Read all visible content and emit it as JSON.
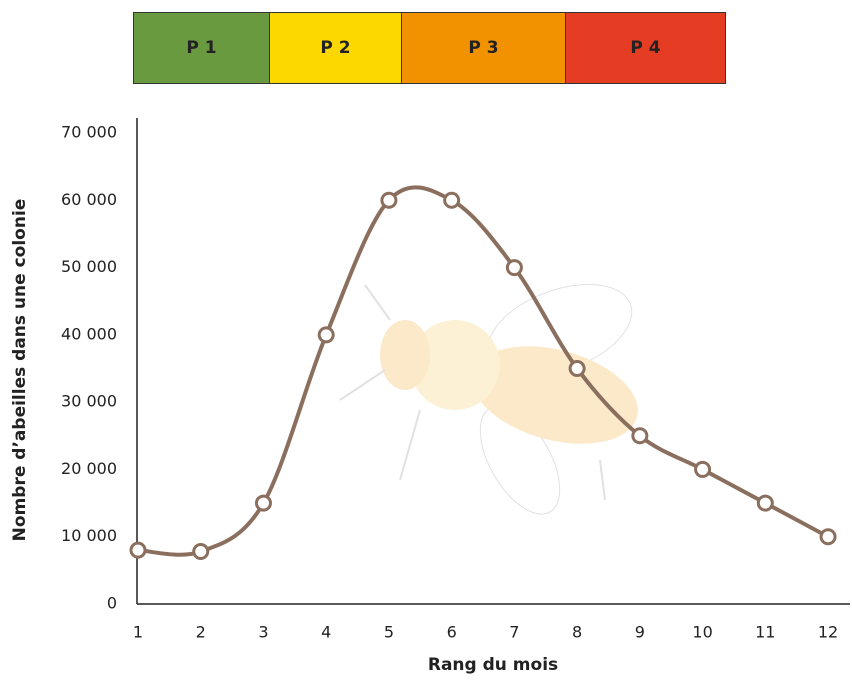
{
  "chart_data": {
    "type": "line",
    "periods": [
      {
        "label": "P 1",
        "color": "#6a9a3f"
      },
      {
        "label": "P 2",
        "color": "#fdd800"
      },
      {
        "label": "P 3",
        "color": "#f39200"
      },
      {
        "label": "P 4",
        "color": "#e43d23"
      }
    ],
    "x_label": "Rang du mois",
    "y_label": "Nombre d’abeilles dans une colonie",
    "x": [
      1,
      2,
      3,
      4,
      5,
      6,
      7,
      8,
      9,
      10,
      11,
      12
    ],
    "series": [
      {
        "color": "#8b6f5e",
        "values": [
          8000,
          7800,
          15000,
          40000,
          60000,
          60000,
          50000,
          35000,
          25000,
          20000,
          15000,
          10000
        ]
      }
    ],
    "xlim": [
      1,
      12.35
    ],
    "xticks": [
      1,
      2,
      3,
      4,
      5,
      6,
      7,
      8,
      9,
      10,
      11,
      12
    ],
    "ylim": [
      0,
      70000
    ],
    "yticks": [
      0,
      {
        "value": 10000,
        "label": "10 000"
      },
      {
        "value": 20000,
        "label": "20 000"
      },
      {
        "value": 30000,
        "label": "30 000"
      },
      {
        "value": 40000,
        "label": "40 000"
      },
      {
        "value": 50000,
        "label": "50 000"
      },
      {
        "value": 60000,
        "label": "60 000"
      },
      {
        "value": 70000,
        "label": "70 000"
      }
    ],
    "grid": false
  }
}
